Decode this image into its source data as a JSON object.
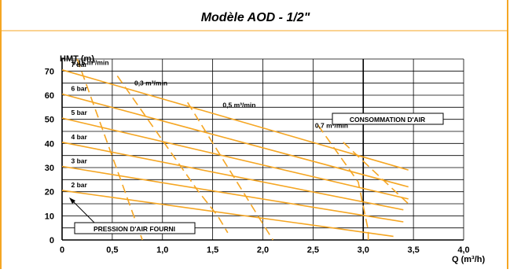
{
  "chart_data": {
    "type": "line",
    "title": "Modèle AOD - 1/2\"",
    "xlabel": "Q (m³/h)",
    "ylabel": "HMT (m)",
    "xlim": [
      0,
      4.0
    ],
    "ylim": [
      0,
      75
    ],
    "grid": true,
    "x_ticks": [
      "0",
      "0,5",
      "1,0",
      "1,5",
      "2,0",
      "2,5",
      "3,0",
      "3,5",
      "4,0"
    ],
    "y_ticks": [
      "0",
      "10",
      "20",
      "30",
      "40",
      "50",
      "60",
      "70"
    ],
    "pressure_series": [
      {
        "name": "2 bar",
        "points": [
          [
            0,
            20.5
          ],
          [
            3.3,
            1.5
          ]
        ]
      },
      {
        "name": "3 bar",
        "points": [
          [
            0,
            30.5
          ],
          [
            3.4,
            7.5
          ]
        ]
      },
      {
        "name": "4 bar",
        "points": [
          [
            0,
            40.5
          ],
          [
            3.4,
            12.5
          ]
        ]
      },
      {
        "name": "5 bar",
        "points": [
          [
            0,
            50.5
          ],
          [
            3.45,
            17
          ]
        ]
      },
      {
        "name": "6 bar",
        "points": [
          [
            0,
            60.5
          ],
          [
            3.45,
            22
          ]
        ]
      },
      {
        "name": "7 bar",
        "points": [
          [
            0,
            70.5
          ],
          [
            3.45,
            29
          ]
        ]
      }
    ],
    "air_consumption_series": [
      {
        "name": "0,15 m³/min",
        "points": [
          [
            0.15,
            75
          ],
          [
            0.8,
            0
          ]
        ]
      },
      {
        "name": "0,3 m³/min",
        "points": [
          [
            0.55,
            68
          ],
          [
            1.35,
            20.5
          ],
          [
            1.55,
            10
          ],
          [
            1.65,
            3
          ]
        ]
      },
      {
        "name": "0,5 m³/min",
        "points": [
          [
            1.25,
            57
          ],
          [
            2.1,
            0
          ]
        ]
      },
      {
        "name": "0,7 m³/min",
        "points": [
          [
            2.55,
            47.5
          ],
          [
            2.95,
            24
          ],
          [
            3.05,
            4
          ],
          [
            3.05,
            0
          ]
        ]
      },
      {
        "name": "",
        "points": [
          [
            2.8,
            40.5
          ],
          [
            3.45,
            15
          ]
        ]
      }
    ],
    "annotations": {
      "air_consumption": "CONSOMMATION D'AIR",
      "supplied_pressure": "PRESSION D'AIR FOURNI"
    },
    "colors": {
      "curves": "#f5a623",
      "border": "#f5a623",
      "grid": "#000000"
    }
  }
}
